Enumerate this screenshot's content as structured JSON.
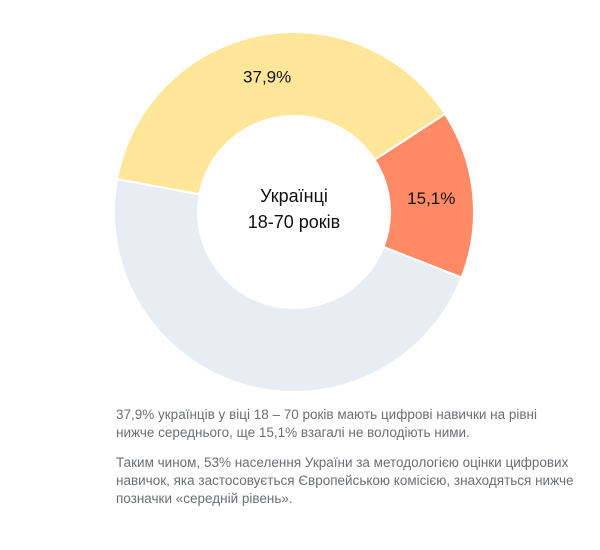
{
  "chart_data": {
    "type": "pie",
    "donut": true,
    "center_label": [
      "Українці",
      "18-70 років"
    ],
    "slices": [
      {
        "value": 15.1,
        "label": "15,1%",
        "color": "#ff8a65"
      },
      {
        "value": 47.0,
        "label": "",
        "color": "#e8edf3"
      },
      {
        "value": 37.9,
        "label": "37,9%",
        "color": "#ffe699"
      }
    ],
    "start_angle_deg": 57
  },
  "notes": {
    "paragraph1": "37,9% українців у віці 18 – 70 років мають цифрові навички на рівні нижче середнього, ще 15,1% взагалі не володіють ними.",
    "paragraph2": "Таким чином, 53% населення України за методологією оцінки цифрових навичок, яка застосовується Європейською комісією, знаходяться нижче позначки «середній рівень»."
  }
}
